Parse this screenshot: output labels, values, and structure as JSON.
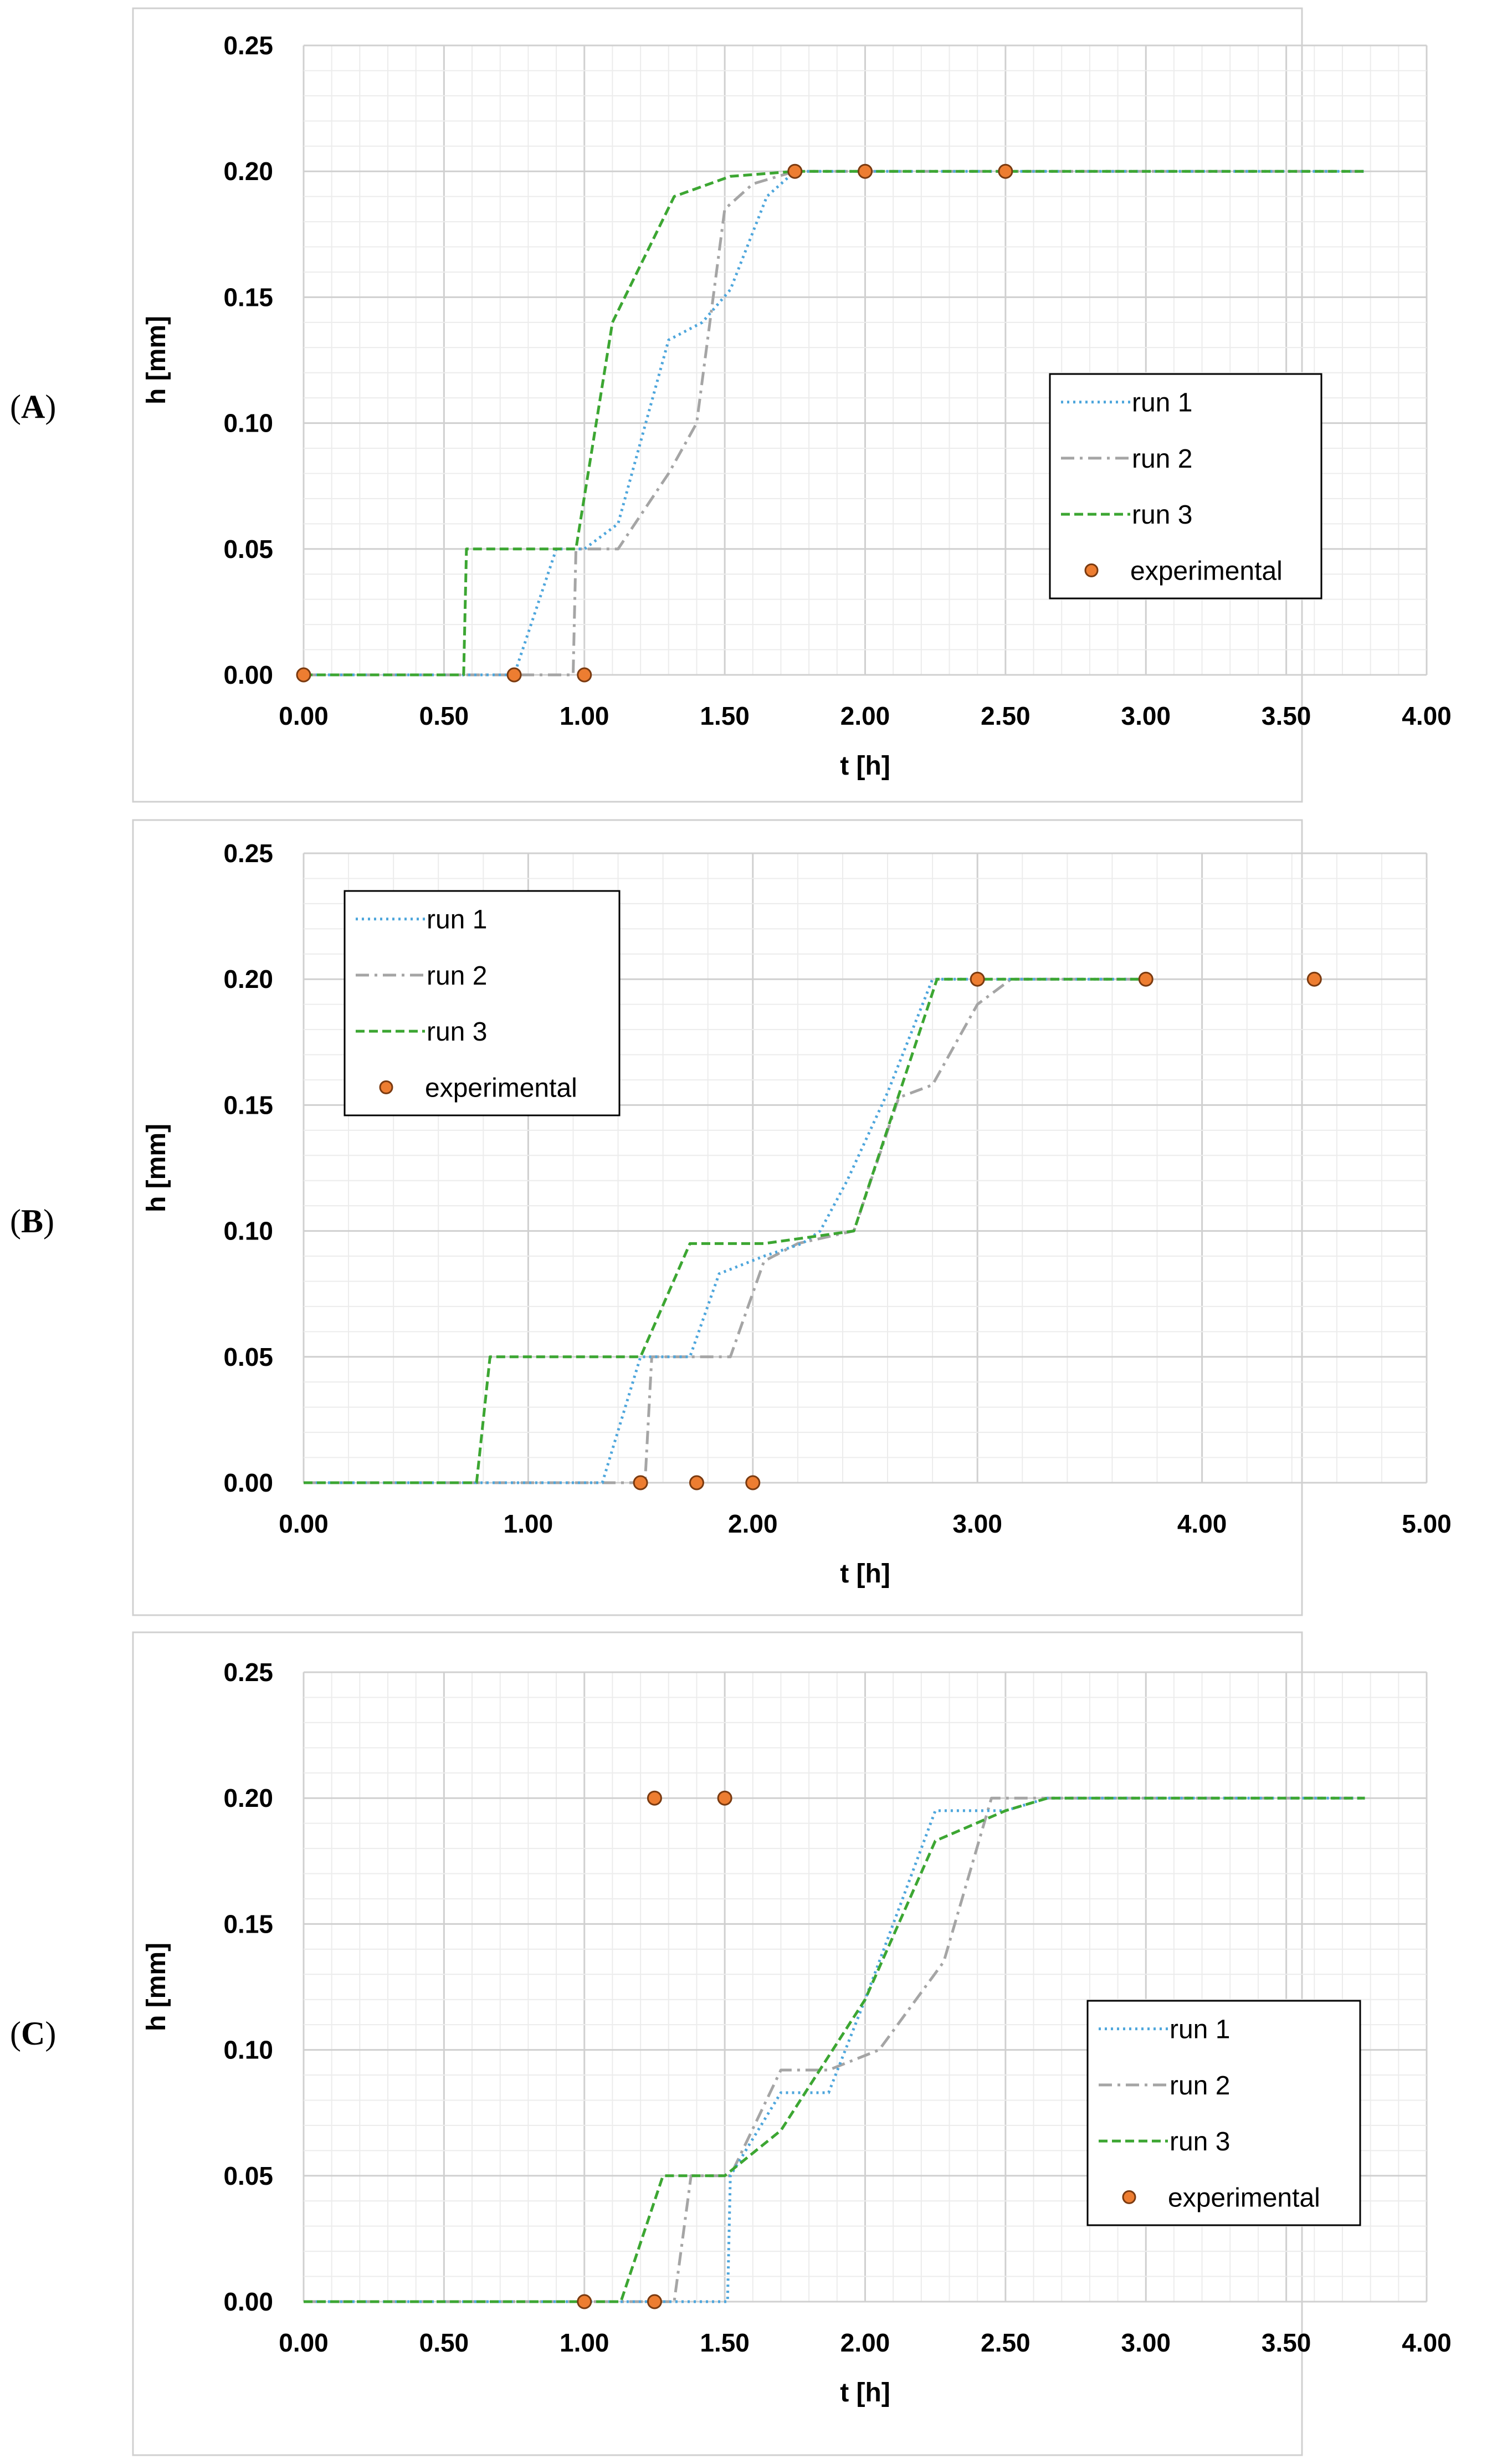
{
  "colors": {
    "run1": "#4ea6dc",
    "run2": "#a5a5a5",
    "run3": "#3ca632",
    "experimental_fill": "#ed7d31",
    "experimental_stroke": "#7a3a10",
    "grid_major": "#d0d0d0",
    "grid_minor": "#ececec",
    "frame": "#d0d0d0"
  },
  "chart_data": [
    {
      "panel_label": "A",
      "type": "line",
      "title": "",
      "xlabel": "t [h]",
      "ylabel": "h [mm]",
      "xlim": [
        0,
        4
      ],
      "ylim": [
        0,
        0.25
      ],
      "xtick_labels": [
        "0.00",
        "0.50",
        "1.00",
        "1.50",
        "2.00",
        "2.50",
        "3.00",
        "3.50",
        "4.00"
      ],
      "ytick_labels": [
        "0.00",
        "0.05",
        "0.10",
        "0.15",
        "0.20",
        "0.25"
      ],
      "legend_position": "middle-right",
      "series": [
        {
          "name": "run 1",
          "key": "run1",
          "style": "dotted",
          "x": [
            0,
            0.75,
            0.9,
            1.0,
            1.12,
            1.3,
            1.42,
            1.52,
            1.65,
            1.75,
            3.78
          ],
          "y": [
            0,
            0,
            0.05,
            0.05,
            0.06,
            0.133,
            0.14,
            0.153,
            0.19,
            0.2,
            0.2
          ]
        },
        {
          "name": "run 2",
          "key": "run2",
          "style": "dashdot",
          "x": [
            0,
            0.96,
            0.97,
            1.12,
            1.3,
            1.4,
            1.5,
            1.6,
            1.75,
            3.78
          ],
          "y": [
            0,
            0,
            0.05,
            0.05,
            0.08,
            0.1,
            0.185,
            0.195,
            0.2,
            0.2
          ]
        },
        {
          "name": "run 3",
          "key": "run3",
          "style": "dashed",
          "x": [
            0,
            0.57,
            0.58,
            0.97,
            1.1,
            1.32,
            1.52,
            1.75,
            3.78
          ],
          "y": [
            0,
            0,
            0.05,
            0.05,
            0.14,
            0.19,
            0.198,
            0.2,
            0.2
          ]
        },
        {
          "name": "experimental",
          "key": "experimental",
          "style": "markers",
          "x": [
            0,
            0.75,
            1.0,
            1.75,
            2.0,
            2.5
          ],
          "y": [
            0,
            0,
            0,
            0.2,
            0.2,
            0.2
          ]
        }
      ]
    },
    {
      "panel_label": "B",
      "type": "line",
      "title": "",
      "xlabel": "t [h]",
      "ylabel": "h [mm]",
      "xlim": [
        0,
        5
      ],
      "ylim": [
        0,
        0.25
      ],
      "xtick_labels": [
        "0.00",
        "1.00",
        "2.00",
        "3.00",
        "4.00",
        "5.00"
      ],
      "ytick_labels": [
        "0.00",
        "0.05",
        "0.10",
        "0.15",
        "0.20",
        "0.25"
      ],
      "legend_position": "top-left",
      "series": [
        {
          "name": "run 1",
          "key": "run1",
          "style": "dotted",
          "x": [
            0,
            1.33,
            1.5,
            1.72,
            1.85,
            2.05,
            2.22,
            2.3,
            2.42,
            2.6,
            2.8,
            3.0,
            3.78
          ],
          "y": [
            0,
            0,
            0.05,
            0.05,
            0.083,
            0.09,
            0.095,
            0.1,
            0.12,
            0.155,
            0.2,
            0.2,
            0.2
          ]
        },
        {
          "name": "run 2",
          "key": "run2",
          "style": "dashdot",
          "x": [
            0,
            1.52,
            1.55,
            1.9,
            2.05,
            2.2,
            2.45,
            2.65,
            2.8,
            3.0,
            3.15,
            3.78
          ],
          "y": [
            0,
            0,
            0.05,
            0.05,
            0.088,
            0.095,
            0.1,
            0.153,
            0.158,
            0.19,
            0.2,
            0.2
          ]
        },
        {
          "name": "run 3",
          "key": "run3",
          "style": "dashed",
          "x": [
            0,
            0.77,
            0.83,
            1.5,
            1.72,
            2.05,
            2.45,
            2.82,
            3.78
          ],
          "y": [
            0,
            0,
            0.05,
            0.05,
            0.095,
            0.095,
            0.1,
            0.2,
            0.2
          ]
        },
        {
          "name": "experimental",
          "key": "experimental",
          "style": "markers",
          "x": [
            1.5,
            1.75,
            2.0,
            3.0,
            3.75,
            4.5
          ],
          "y": [
            0,
            0,
            0,
            0.2,
            0.2,
            0.2
          ]
        }
      ]
    },
    {
      "panel_label": "C",
      "type": "line",
      "title": "",
      "xlabel": "t [h]",
      "ylabel": "h [mm]",
      "xlim": [
        0,
        4
      ],
      "ylim": [
        0,
        0.25
      ],
      "xtick_labels": [
        "0.00",
        "0.50",
        "1.00",
        "1.50",
        "2.00",
        "2.50",
        "3.00",
        "3.50",
        "4.00"
      ],
      "ytick_labels": [
        "0.00",
        "0.05",
        "0.10",
        "0.15",
        "0.20",
        "0.25"
      ],
      "legend_position": "bottom-right",
      "series": [
        {
          "name": "run 1",
          "key": "run1",
          "style": "dotted",
          "x": [
            0,
            1.51,
            1.52,
            1.7,
            1.87,
            2.0,
            2.25,
            2.5,
            2.65,
            3.78
          ],
          "y": [
            0,
            0,
            0.05,
            0.083,
            0.083,
            0.12,
            0.195,
            0.195,
            0.2,
            0.2
          ]
        },
        {
          "name": "run 2",
          "key": "run2",
          "style": "dashdot",
          "x": [
            0,
            1.32,
            1.38,
            1.52,
            1.7,
            1.87,
            2.05,
            2.28,
            2.45,
            2.5,
            3.78
          ],
          "y": [
            0,
            0,
            0.05,
            0.05,
            0.092,
            0.092,
            0.1,
            0.135,
            0.2,
            0.2,
            0.2
          ]
        },
        {
          "name": "run 3",
          "key": "run3",
          "style": "dashed",
          "x": [
            0,
            1.13,
            1.28,
            1.5,
            1.7,
            2.0,
            2.25,
            2.5,
            2.65,
            3.78
          ],
          "y": [
            0,
            0,
            0.05,
            0.05,
            0.068,
            0.12,
            0.183,
            0.195,
            0.2,
            0.2
          ]
        },
        {
          "name": "experimental",
          "key": "experimental",
          "style": "markers",
          "x": [
            1.0,
            1.25,
            1.25,
            1.5
          ],
          "y": [
            0,
            0,
            0.2,
            0.2
          ]
        }
      ]
    }
  ]
}
